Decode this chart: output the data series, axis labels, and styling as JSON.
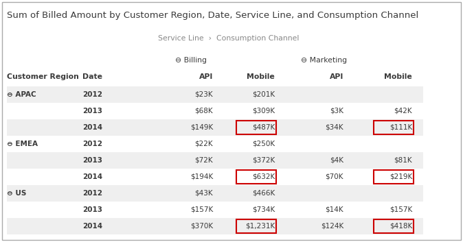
{
  "title": "Sum of Billed Amount by Customer Region, Date, Service Line, and Consumption Channel",
  "breadcrumb": "Service Line  ›  Consumption Channel",
  "billing_label": "⊖ Billing",
  "marketing_label": "⊖ Marketing",
  "rows": [
    {
      "region": "⊖ APAC",
      "date": "2012",
      "b_api": "$23K",
      "b_mob": "$201K",
      "m_api": "",
      "m_mob": "",
      "alt": true,
      "highlight_b_mob": false,
      "highlight_m_mob": false
    },
    {
      "region": "",
      "date": "2013",
      "b_api": "$68K",
      "b_mob": "$309K",
      "m_api": "$3K",
      "m_mob": "$42K",
      "alt": false,
      "highlight_b_mob": false,
      "highlight_m_mob": false
    },
    {
      "region": "",
      "date": "2014",
      "b_api": "$149K",
      "b_mob": "$487K",
      "m_api": "$34K",
      "m_mob": "$111K",
      "alt": true,
      "highlight_b_mob": true,
      "highlight_m_mob": true
    },
    {
      "region": "⊖ EMEA",
      "date": "2012",
      "b_api": "$22K",
      "b_mob": "$250K",
      "m_api": "",
      "m_mob": "",
      "alt": false,
      "highlight_b_mob": false,
      "highlight_m_mob": false
    },
    {
      "region": "",
      "date": "2013",
      "b_api": "$72K",
      "b_mob": "$372K",
      "m_api": "$4K",
      "m_mob": "$81K",
      "alt": true,
      "highlight_b_mob": false,
      "highlight_m_mob": false
    },
    {
      "region": "",
      "date": "2014",
      "b_api": "$194K",
      "b_mob": "$632K",
      "m_api": "$70K",
      "m_mob": "$219K",
      "alt": false,
      "highlight_b_mob": true,
      "highlight_m_mob": true
    },
    {
      "region": "⊖ US",
      "date": "2012",
      "b_api": "$43K",
      "b_mob": "$466K",
      "m_api": "",
      "m_mob": "",
      "alt": true,
      "highlight_b_mob": false,
      "highlight_m_mob": false
    },
    {
      "region": "",
      "date": "2013",
      "b_api": "$157K",
      "b_mob": "$734K",
      "m_api": "$14K",
      "m_mob": "$157K",
      "alt": false,
      "highlight_b_mob": false,
      "highlight_m_mob": false
    },
    {
      "region": "",
      "date": "2014",
      "b_api": "$370K",
      "b_mob": "$1,231K",
      "m_api": "$124K",
      "m_mob": "$418K",
      "alt": true,
      "highlight_b_mob": true,
      "highlight_m_mob": true
    }
  ],
  "bg_color": "#ffffff",
  "alt_row_color": "#efefef",
  "text_color": "#3a3a3a",
  "header_color": "#3a3a3a",
  "highlight_border_color": "#cc0000",
  "outer_border_color": "#aaaaaa",
  "title_fontsize": 9.5,
  "breadcrumb_fontsize": 7.8,
  "header1_fontsize": 7.8,
  "header2_fontsize": 7.8,
  "cell_fontsize": 7.5
}
